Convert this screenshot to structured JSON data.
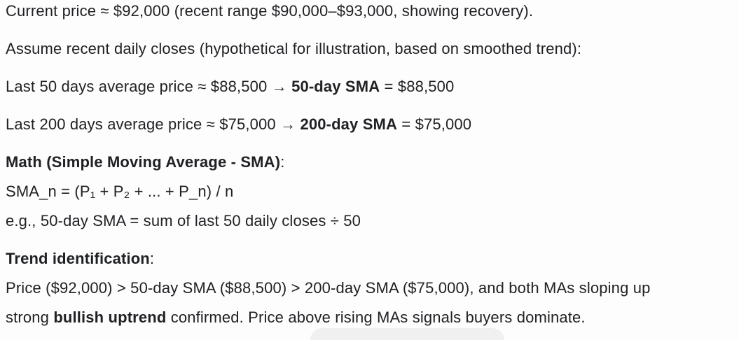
{
  "page": {
    "background": "#fdfdfd",
    "text_color": "#202124",
    "pill_color": "#f0f0f0"
  },
  "content": {
    "paragraphs": [
      {
        "lines": [
          [
            {
              "text": "Current price ≈ $92,000 (recent range $90,000–$93,000, showing recovery).",
              "bold": false
            }
          ]
        ]
      },
      {
        "lines": [
          [
            {
              "text": "Assume recent daily closes (hypothetical for illustration, based on smoothed trend):",
              "bold": false
            }
          ]
        ]
      },
      {
        "lines": [
          [
            {
              "text": "Last 50 days average price ≈ $88,500 → ",
              "bold": false
            },
            {
              "text": "50-day SMA",
              "bold": true
            },
            {
              "text": " = $88,500",
              "bold": false
            }
          ]
        ]
      },
      {
        "lines": [
          [
            {
              "text": "Last 200 days average price ≈ $75,000 → ",
              "bold": false
            },
            {
              "text": "200-day SMA",
              "bold": true
            },
            {
              "text": " = $75,000",
              "bold": false
            }
          ]
        ]
      },
      {
        "lines": [
          [
            {
              "text": "Math (Simple Moving Average - SMA)",
              "bold": true
            },
            {
              "text": ":",
              "bold": false
            }
          ],
          [
            {
              "text": "SMA_n = (P₁ + P₂ + ... + P_n) / n",
              "bold": false
            }
          ],
          [
            {
              "text": "e.g., 50-day SMA = sum of last 50 daily closes ÷ 50",
              "bold": false
            }
          ]
        ]
      },
      {
        "lines": [
          [
            {
              "text": "Trend identification",
              "bold": true
            },
            {
              "text": ":",
              "bold": false
            }
          ],
          [
            {
              "text": "Price ($92,000) > 50-day SMA ($88,500) > 200-day SMA ($75,000), and both MAs sloping up",
              "bold": false
            }
          ],
          [
            {
              "text": "strong ",
              "bold": false
            },
            {
              "text": "bullish uptrend",
              "bold": true
            },
            {
              "text": " confirmed. Price above rising MAs signals buyers dominate.",
              "bold": false
            }
          ]
        ]
      }
    ]
  }
}
